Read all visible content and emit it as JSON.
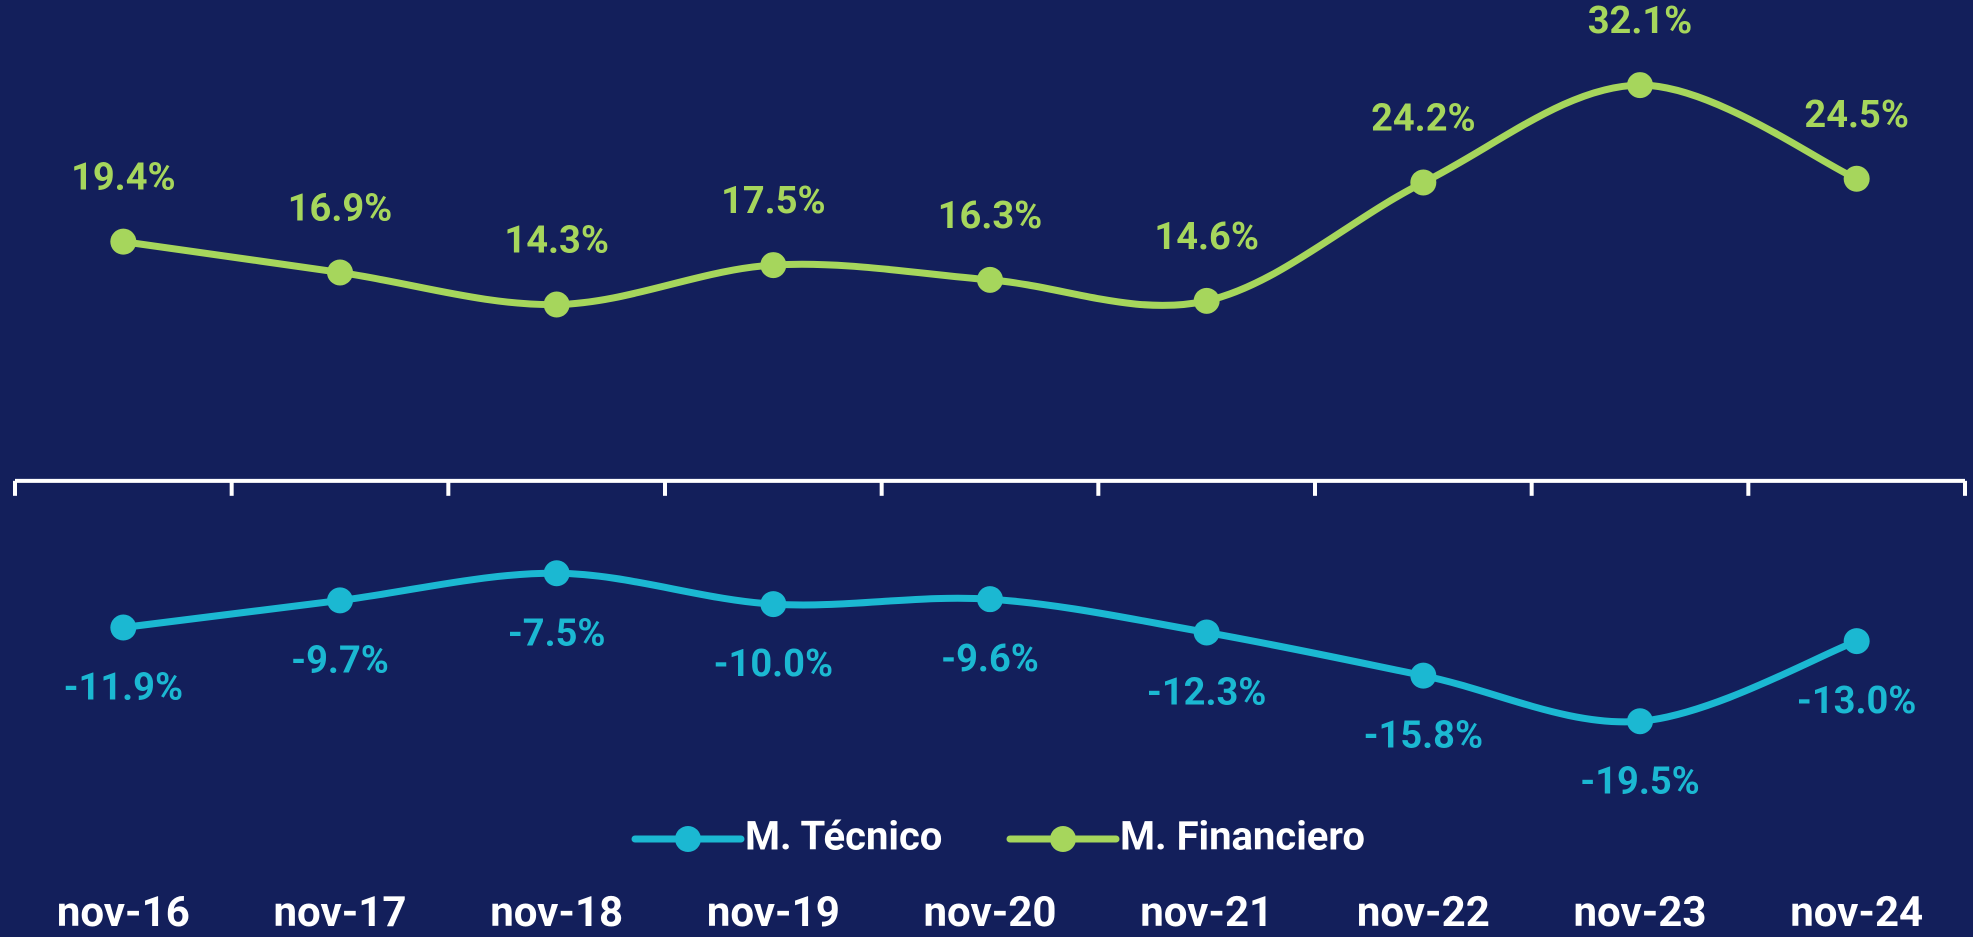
{
  "chart_data": {
    "type": "line",
    "categories": [
      "nov-16",
      "nov-17",
      "nov-18",
      "nov-19",
      "nov-20",
      "nov-21",
      "nov-22",
      "nov-23",
      "nov-24"
    ],
    "series": [
      {
        "name": "M. Técnico",
        "color": "#1bb8d2",
        "values": [
          -11.9,
          -9.7,
          -7.5,
          -10.0,
          -9.6,
          -12.3,
          -15.8,
          -19.5,
          -13.0
        ],
        "value_labels": [
          "-11.9%",
          "-9.7%",
          "-7.5%",
          "-10.0%",
          "-9.6%",
          "-12.3%",
          "-15.8%",
          "-19.5%",
          "-13.0%"
        ]
      },
      {
        "name": "M. Financiero",
        "color": "#a6d65c",
        "values": [
          19.4,
          16.9,
          14.3,
          17.5,
          16.3,
          14.6,
          24.2,
          32.1,
          24.5
        ],
        "value_labels": [
          "19.4%",
          "16.9%",
          "14.3%",
          "17.5%",
          "16.3%",
          "14.6%",
          "24.2%",
          "32.1%",
          "24.5%"
        ]
      }
    ],
    "ylim": [
      -37,
      39
    ],
    "legend": "bottom"
  }
}
